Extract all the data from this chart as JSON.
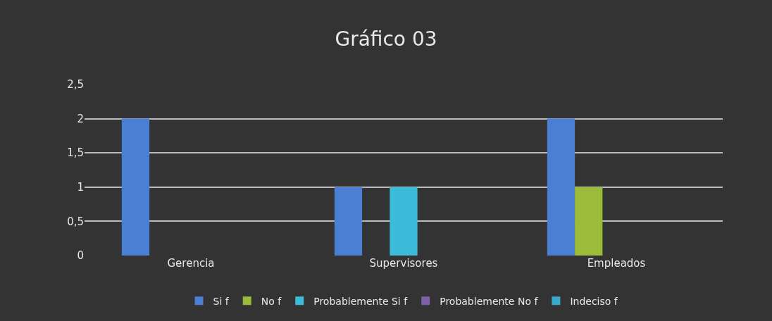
{
  "chart_data": {
    "type": "bar",
    "title": "Gráfico 03",
    "categories": [
      "Gerencia",
      "Supervisores",
      "Empleados"
    ],
    "series": [
      {
        "name": "Si f",
        "color": "#4a7fd4",
        "values": [
          2,
          1,
          2
        ]
      },
      {
        "name": "No f",
        "color": "#9bbb3a",
        "values": [
          0,
          0,
          1
        ]
      },
      {
        "name": "Probablemente Si f",
        "color": "#3cbcd8",
        "values": [
          0,
          1,
          0
        ]
      },
      {
        "name": "Probablemente No f",
        "color": "#7f5fa8",
        "values": [
          0,
          0,
          0
        ]
      },
      {
        "name": "Indeciso f",
        "color": "#36a9cc",
        "values": [
          0,
          0,
          0
        ]
      }
    ],
    "ylim": [
      0,
      2.5
    ],
    "yticks": [
      0,
      {
        "value": 0.5,
        "label": "0,5"
      },
      1,
      {
        "value": 1.5,
        "label": "1,5"
      },
      2,
      {
        "value": 2.5,
        "label": "2,5"
      }
    ],
    "grid": "y",
    "legend": "bottom"
  }
}
